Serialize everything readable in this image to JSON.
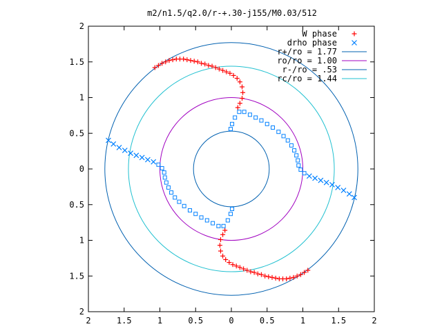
{
  "chart_data": {
    "type": "scatter",
    "title": "m2/n1.5/q2.0/r-+.30-j155/M0.03/512",
    "xlabel": "",
    "ylabel": "",
    "xlim": [
      -2,
      2
    ],
    "ylim": [
      -2,
      2
    ],
    "x_ticks": [
      {
        "value": -2,
        "label": "2"
      },
      {
        "value": -1.5,
        "label": "1.5"
      },
      {
        "value": -1,
        "label": "1"
      },
      {
        "value": -0.5,
        "label": "0.5"
      },
      {
        "value": 0,
        "label": "0"
      },
      {
        "value": 0.5,
        "label": "0.5"
      },
      {
        "value": 1,
        "label": "1"
      },
      {
        "value": 1.5,
        "label": "1.5"
      },
      {
        "value": 2,
        "label": "2"
      }
    ],
    "y_ticks": [
      {
        "value": -2,
        "label": "2"
      },
      {
        "value": -1.5,
        "label": "1.5"
      },
      {
        "value": -1,
        "label": "1"
      },
      {
        "value": -0.5,
        "label": "0.5"
      },
      {
        "value": 0,
        "label": "0"
      },
      {
        "value": 0.5,
        "label": "0.5"
      },
      {
        "value": 1,
        "label": "1"
      },
      {
        "value": 1.5,
        "label": "1.5"
      },
      {
        "value": 2,
        "label": "2"
      }
    ],
    "grid": false,
    "legend_position": "top-right",
    "series": [
      {
        "name": "W phase",
        "marker": "plus",
        "color": "#ff0000",
        "points": [
          [
            -1.07,
            1.42
          ],
          [
            -1.02,
            1.45
          ],
          [
            -0.97,
            1.48
          ],
          [
            -0.92,
            1.5
          ],
          [
            -0.87,
            1.52
          ],
          [
            -0.82,
            1.53
          ],
          [
            -0.77,
            1.54
          ],
          [
            -0.72,
            1.54
          ],
          [
            -0.67,
            1.54
          ],
          [
            -0.62,
            1.53
          ],
          [
            -0.57,
            1.52
          ],
          [
            -0.52,
            1.51
          ],
          [
            -0.47,
            1.5
          ],
          [
            -0.42,
            1.48
          ],
          [
            -0.37,
            1.47
          ],
          [
            -0.32,
            1.45
          ],
          [
            -0.27,
            1.44
          ],
          [
            -0.22,
            1.42
          ],
          [
            -0.17,
            1.4
          ],
          [
            -0.12,
            1.38
          ],
          [
            -0.07,
            1.36
          ],
          [
            -0.02,
            1.34
          ],
          [
            0.03,
            1.31
          ],
          [
            0.08,
            1.27
          ],
          [
            0.12,
            1.22
          ],
          [
            0.15,
            1.15
          ],
          [
            0.16,
            1.07
          ],
          [
            0.15,
            0.99
          ],
          [
            0.12,
            0.92
          ],
          [
            0.09,
            0.86
          ],
          [
            1.07,
            -1.42
          ],
          [
            1.02,
            -1.45
          ],
          [
            0.97,
            -1.48
          ],
          [
            0.92,
            -1.5
          ],
          [
            0.87,
            -1.52
          ],
          [
            0.82,
            -1.53
          ],
          [
            0.77,
            -1.54
          ],
          [
            0.72,
            -1.54
          ],
          [
            0.67,
            -1.54
          ],
          [
            0.62,
            -1.53
          ],
          [
            0.57,
            -1.52
          ],
          [
            0.52,
            -1.51
          ],
          [
            0.47,
            -1.5
          ],
          [
            0.42,
            -1.48
          ],
          [
            0.37,
            -1.47
          ],
          [
            0.32,
            -1.45
          ],
          [
            0.27,
            -1.44
          ],
          [
            0.22,
            -1.42
          ],
          [
            0.17,
            -1.4
          ],
          [
            0.12,
            -1.38
          ],
          [
            0.07,
            -1.36
          ],
          [
            0.02,
            -1.34
          ],
          [
            -0.03,
            -1.31
          ],
          [
            -0.08,
            -1.27
          ],
          [
            -0.12,
            -1.22
          ],
          [
            -0.15,
            -1.15
          ],
          [
            -0.16,
            -1.07
          ],
          [
            -0.15,
            -0.99
          ],
          [
            -0.12,
            -0.92
          ],
          [
            -0.09,
            -0.86
          ]
        ]
      },
      {
        "name": "drho phase",
        "marker": "cross-square",
        "color": "#0080ff",
        "points": [
          [
            -1.72,
            0.4
          ],
          [
            -1.65,
            0.35
          ],
          [
            -1.57,
            0.3
          ],
          [
            -1.49,
            0.26
          ],
          [
            -1.41,
            0.22
          ],
          [
            -1.33,
            0.19
          ],
          [
            -1.25,
            0.16
          ],
          [
            -1.17,
            0.13
          ],
          [
            -1.09,
            0.1
          ],
          [
            -1.02,
            0.06
          ],
          [
            -0.97,
            0.01
          ],
          [
            -0.94,
            -0.05
          ],
          [
            -0.93,
            -0.12
          ],
          [
            -0.91,
            -0.19
          ],
          [
            -0.88,
            -0.26
          ],
          [
            -0.84,
            -0.33
          ],
          [
            -0.79,
            -0.4
          ],
          [
            -0.73,
            -0.46
          ],
          [
            -0.66,
            -0.52
          ],
          [
            -0.58,
            -0.58
          ],
          [
            -0.5,
            -0.63
          ],
          [
            -0.42,
            -0.68
          ],
          [
            -0.34,
            -0.72
          ],
          [
            -0.26,
            -0.76
          ],
          [
            -0.18,
            -0.8
          ],
          [
            -0.11,
            -0.8
          ],
          [
            -0.05,
            -0.72
          ],
          [
            -0.01,
            -0.63
          ],
          [
            0.01,
            -0.56
          ],
          [
            1.72,
            -0.4
          ],
          [
            1.65,
            -0.35
          ],
          [
            1.57,
            -0.3
          ],
          [
            1.49,
            -0.26
          ],
          [
            1.41,
            -0.22
          ],
          [
            1.33,
            -0.19
          ],
          [
            1.25,
            -0.16
          ],
          [
            1.17,
            -0.13
          ],
          [
            1.09,
            -0.1
          ],
          [
            1.02,
            -0.06
          ],
          [
            0.97,
            -0.01
          ],
          [
            0.94,
            0.05
          ],
          [
            0.93,
            0.12
          ],
          [
            0.91,
            0.19
          ],
          [
            0.88,
            0.26
          ],
          [
            0.84,
            0.33
          ],
          [
            0.79,
            0.4
          ],
          [
            0.73,
            0.46
          ],
          [
            0.66,
            0.52
          ],
          [
            0.58,
            0.58
          ],
          [
            0.5,
            0.63
          ],
          [
            0.42,
            0.68
          ],
          [
            0.34,
            0.72
          ],
          [
            0.26,
            0.76
          ],
          [
            0.18,
            0.8
          ],
          [
            0.11,
            0.8
          ],
          [
            0.05,
            0.72
          ],
          [
            0.01,
            0.63
          ],
          [
            -0.01,
            0.56
          ]
        ]
      }
    ],
    "circles": [
      {
        "name": "r+/ro = 1.77",
        "radius": 1.77,
        "color": "#0060b0"
      },
      {
        "name": "ro/ro = 1.00",
        "radius": 1.0,
        "color": "#a000c0"
      },
      {
        "name": "r-/ro = .53",
        "radius": 0.53,
        "color": "#0060b0"
      },
      {
        "name": "rc/ro = 1.44",
        "radius": 1.44,
        "color": "#20c0d0"
      }
    ]
  }
}
